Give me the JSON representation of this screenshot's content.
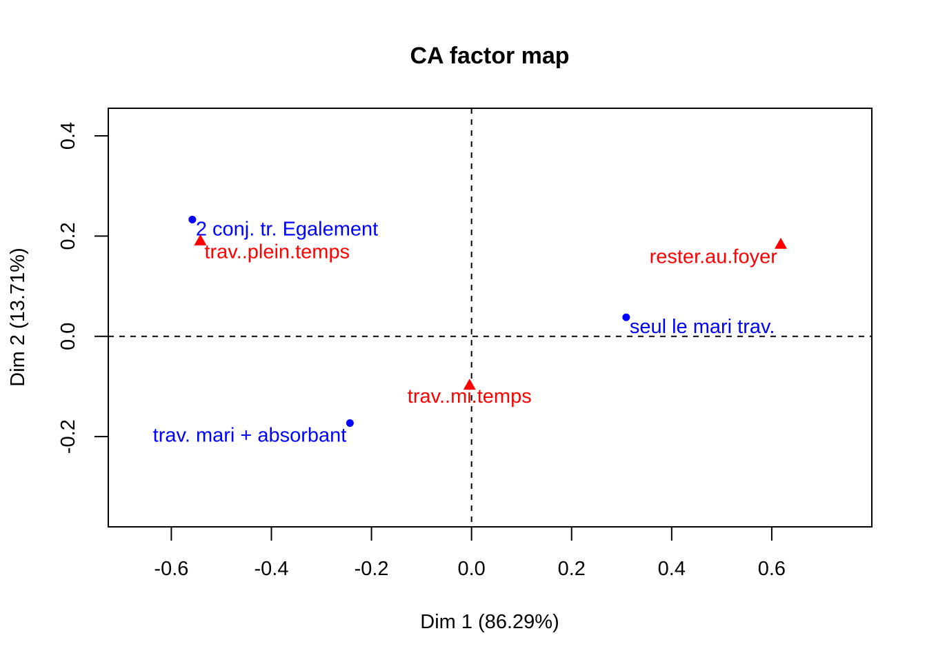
{
  "chart_data": {
    "type": "scatter",
    "title": "CA factor map",
    "xlabel": "Dim 1 (86.29%)",
    "ylabel": "Dim 2 (13.71%)",
    "xlim": [
      -0.726,
      0.8
    ],
    "ylim": [
      -0.38,
      0.455
    ],
    "x_ticks": [
      -0.6,
      -0.4,
      -0.2,
      0.0,
      0.2,
      0.4,
      0.6
    ],
    "x_tick_labels": [
      "-0.6",
      "-0.4",
      "-0.2",
      "0.0",
      "0.2",
      "0.4",
      "0.6"
    ],
    "y_ticks": [
      -0.2,
      0.0,
      0.2,
      0.4
    ],
    "y_tick_labels": [
      "-0.2",
      "0.0",
      "0.2",
      "0.4"
    ],
    "reference_lines": {
      "x": 0,
      "y": 0,
      "style": "dashed"
    },
    "grid": false,
    "series": [
      {
        "marker": "circle",
        "color": "#0000ff",
        "points": [
          {
            "label": "2 conj. tr. Egalement",
            "x": -0.558,
            "y": 0.233,
            "label_side": "right"
          },
          {
            "label": "trav. mari + absorbant",
            "x": -0.243,
            "y": -0.173,
            "label_side": "left"
          },
          {
            "label": "seul le mari trav.",
            "x": 0.309,
            "y": 0.038,
            "label_side": "right"
          }
        ]
      },
      {
        "marker": "triangle",
        "color": "#ff0000",
        "points": [
          {
            "label": "trav..plein.temps",
            "x": -0.542,
            "y": 0.19,
            "label_side": "below-right"
          },
          {
            "label": "rester.au.foyer",
            "x": 0.618,
            "y": 0.183,
            "label_side": "left"
          },
          {
            "label": "trav..mi.temps",
            "x": -0.004,
            "y": -0.098,
            "label_side": "below"
          }
        ]
      }
    ]
  }
}
